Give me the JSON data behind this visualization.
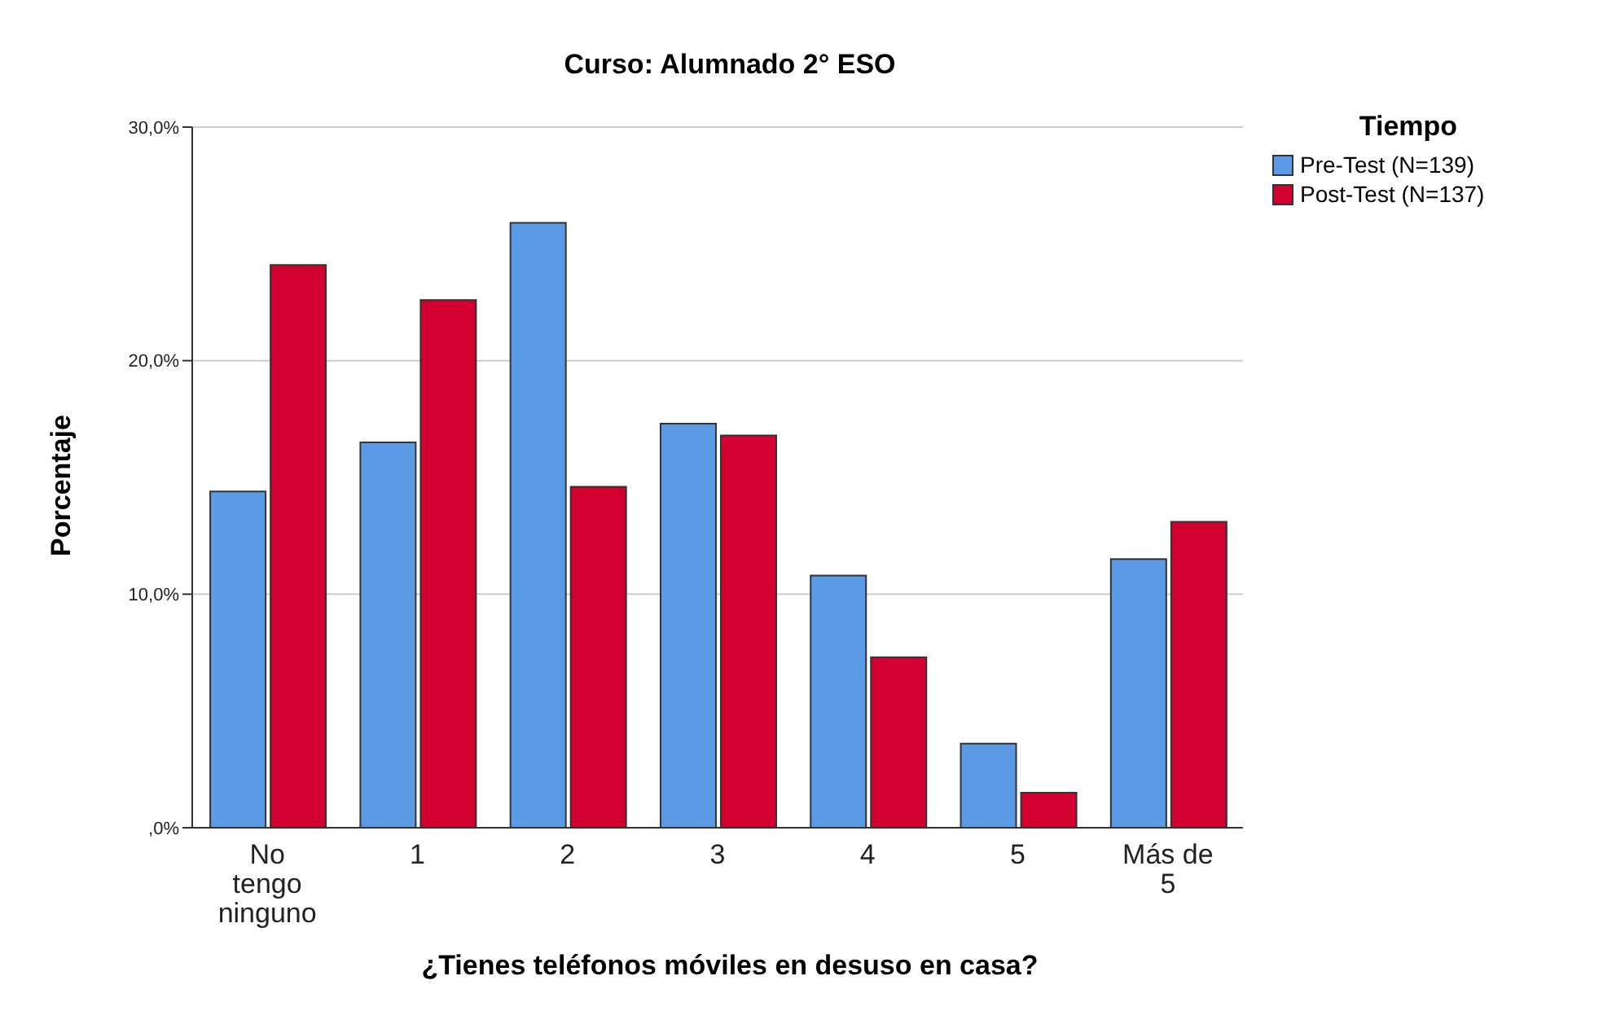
{
  "chart_data": {
    "type": "bar",
    "title": "Curso: Alumnado 2° ESO",
    "xlabel": "¿Tienes teléfonos móviles en desuso en casa?",
    "ylabel": "Porcentaje",
    "legend_title": "Tiempo",
    "categories": [
      "No tengo ninguno",
      "1",
      "2",
      "3",
      "4",
      "5",
      "Más de 5"
    ],
    "series": [
      {
        "name": "Pre-Test (N=139)",
        "color": "#5b9be6",
        "values": [
          14.4,
          16.5,
          25.9,
          17.3,
          10.8,
          3.6,
          11.5
        ]
      },
      {
        "name": "Post-Test (N=137)",
        "color": "#d2002e",
        "values": [
          24.1,
          22.6,
          14.6,
          16.8,
          7.3,
          1.5,
          13.1
        ]
      }
    ],
    "ylim": [
      0,
      30
    ],
    "yticks": [
      {
        "value": 0,
        "label": ",0%"
      },
      {
        "value": 10,
        "label": "10,0%"
      },
      {
        "value": 20,
        "label": "20,0%"
      },
      {
        "value": 30,
        "label": "30,0%"
      }
    ],
    "grid": "y",
    "legend": "top right"
  }
}
